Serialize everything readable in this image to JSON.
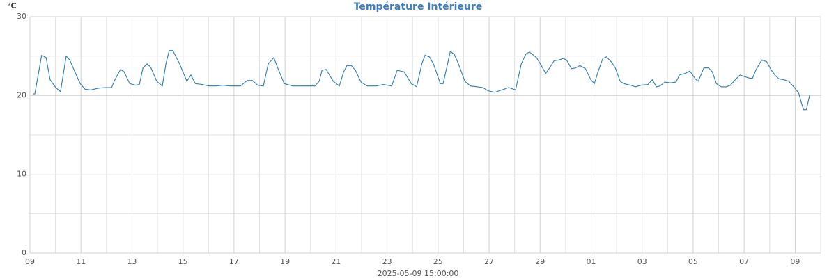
{
  "chart_data": {
    "type": "line",
    "title": "Température Intérieure",
    "y_label": "°C",
    "x_label": "2025-05-09 15:00:00",
    "xlim": [
      0,
      31
    ],
    "ylim": [
      0,
      30
    ],
    "xticks": [
      {
        "value": 0,
        "label": "09"
      },
      {
        "value": 2,
        "label": "11"
      },
      {
        "value": 4,
        "label": "13"
      },
      {
        "value": 6,
        "label": "15"
      },
      {
        "value": 8,
        "label": "17"
      },
      {
        "value": 10,
        "label": "19"
      },
      {
        "value": 12,
        "label": "21"
      },
      {
        "value": 14,
        "label": "23"
      },
      {
        "value": 16,
        "label": "25"
      },
      {
        "value": 18,
        "label": "27"
      },
      {
        "value": 20,
        "label": "29"
      },
      {
        "value": 22,
        "label": "01"
      },
      {
        "value": 24,
        "label": "03"
      },
      {
        "value": 26,
        "label": "05"
      },
      {
        "value": 28,
        "label": "07"
      },
      {
        "value": 30,
        "label": "09"
      }
    ],
    "xminor": [
      1,
      3,
      5,
      7,
      9,
      11,
      13,
      15,
      17,
      19,
      21,
      23,
      25,
      27,
      29,
      31
    ],
    "yticks": [
      0,
      10,
      20,
      30
    ],
    "yminor": [
      5,
      15,
      25
    ],
    "grid": true,
    "series": [
      {
        "name": "Température Intérieure",
        "color": "#2b7bb5",
        "x": [
          0.11,
          0.19,
          0.46,
          0.63,
          0.79,
          1.01,
          1.2,
          1.42,
          1.56,
          1.83,
          1.97,
          2.16,
          2.38,
          2.65,
          2.92,
          3.2,
          3.33,
          3.55,
          3.69,
          3.91,
          4.15,
          4.29,
          4.43,
          4.59,
          4.73,
          4.97,
          5.19,
          5.33,
          5.46,
          5.6,
          5.87,
          6.15,
          6.31,
          6.48,
          6.75,
          7.02,
          7.3,
          7.57,
          7.84,
          8.25,
          8.52,
          8.72,
          8.93,
          9.15,
          9.34,
          9.56,
          9.75,
          9.97,
          10.3,
          10.57,
          10.85,
          11.17,
          11.34,
          11.45,
          11.61,
          11.89,
          12.13,
          12.3,
          12.43,
          12.6,
          12.76,
          12.98,
          13.22,
          13.58,
          13.85,
          14.18,
          14.4,
          14.67,
          14.95,
          15.16,
          15.36,
          15.49,
          15.66,
          15.82,
          16.09,
          16.2,
          16.37,
          16.48,
          16.64,
          16.8,
          17.05,
          17.27,
          17.54,
          17.76,
          17.95,
          18.22,
          18.5,
          18.77,
          19.04,
          19.26,
          19.45,
          19.59,
          19.86,
          20.05,
          20.22,
          20.33,
          20.55,
          20.74,
          20.9,
          21.04,
          21.23,
          21.39,
          21.56,
          21.78,
          21.99,
          22.13,
          22.27,
          22.46,
          22.6,
          22.81,
          22.95,
          23.14,
          23.28,
          23.55,
          23.74,
          23.96,
          24.23,
          24.4,
          24.56,
          24.7,
          24.89,
          25.11,
          25.33,
          25.46,
          25.68,
          25.87,
          26.09,
          26.2,
          26.42,
          26.61,
          26.75,
          26.91,
          27.1,
          27.3,
          27.46,
          27.65,
          27.84,
          28.01,
          28.22,
          28.33,
          28.47,
          28.69,
          28.88,
          29.07,
          29.23,
          29.37,
          29.56,
          29.75,
          29.97,
          30.14,
          30.25,
          30.33,
          30.44,
          30.57
        ],
        "values": [
          20.2,
          20.2,
          25.1,
          24.8,
          22,
          21.0,
          20.5,
          25,
          24.5,
          22.5,
          21.5,
          20.8,
          20.7,
          20.9,
          21.0,
          21.0,
          22,
          23.3,
          23,
          21.5,
          21.3,
          21.4,
          23.5,
          24,
          23.6,
          21.8,
          21.2,
          24,
          25.7,
          25.7,
          24,
          21.8,
          22.6,
          21.5,
          21.4,
          21.2,
          21.2,
          21.3,
          21.2,
          21.2,
          21.9,
          21.9,
          21.3,
          21.2,
          24,
          24.8,
          23.2,
          21.5,
          21.2,
          21.2,
          21.2,
          21.2,
          21.8,
          23.2,
          23.3,
          21.8,
          21.2,
          23,
          23.8,
          23.8,
          23.2,
          21.7,
          21.2,
          21.2,
          21.4,
          21.2,
          23.2,
          23,
          21.5,
          21.1,
          24,
          25.1,
          24.9,
          24,
          21.5,
          21.5,
          24,
          25.6,
          25.2,
          24,
          21.8,
          21.2,
          21.1,
          21.0,
          20.6,
          20.4,
          20.7,
          21.0,
          20.7,
          24,
          25.3,
          25.5,
          24.8,
          23.8,
          22.8,
          23.3,
          24.4,
          24.5,
          24.7,
          24.5,
          23.4,
          23.5,
          23.8,
          23.4,
          22,
          21.5,
          23,
          24.7,
          24.9,
          24.2,
          23.5,
          21.8,
          21.5,
          21.3,
          21.1,
          21.3,
          21.4,
          22,
          21.1,
          21.2,
          21.7,
          21.6,
          21.7,
          22.6,
          22.8,
          23.1,
          22.1,
          21.8,
          23.5,
          23.5,
          23,
          21.5,
          21.1,
          21.1,
          21.3,
          22,
          22.6,
          22.4,
          22.2,
          22.2,
          23.3,
          24.5,
          24.3,
          23.2,
          22.5,
          22.1,
          22.0,
          21.8,
          21,
          20.3,
          19,
          18.2,
          18.2,
          20.1
        ]
      }
    ]
  }
}
